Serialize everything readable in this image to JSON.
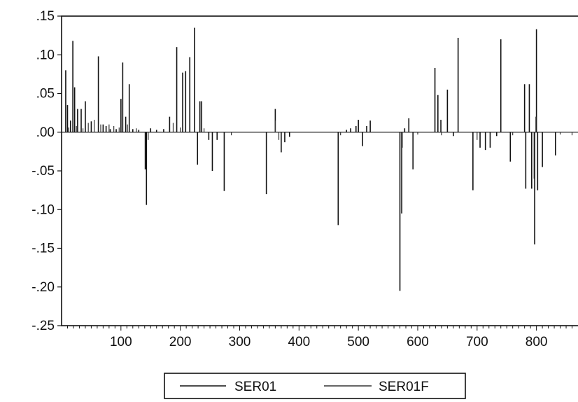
{
  "chart_data": {
    "type": "line",
    "title": "",
    "xlabel": "",
    "ylabel": "",
    "xlim": [
      0,
      870
    ],
    "ylim": [
      -0.25,
      0.15
    ],
    "x_ticks": [
      {
        "value": 100,
        "label": "100"
      },
      {
        "value": 200,
        "label": "200"
      },
      {
        "value": 300,
        "label": "300"
      },
      {
        "value": 400,
        "label": "400"
      },
      {
        "value": 500,
        "label": "500"
      },
      {
        "value": 600,
        "label": "600"
      },
      {
        "value": 700,
        "label": "700"
      },
      {
        "value": 800,
        "label": "800"
      }
    ],
    "y_ticks": [
      {
        "value": 0.15,
        "label": ".15"
      },
      {
        "value": 0.1,
        "label": ".10"
      },
      {
        "value": 0.05,
        "label": ".05"
      },
      {
        "value": 0.0,
        "label": ".00"
      },
      {
        "value": -0.05,
        "label": "-.05"
      },
      {
        "value": -0.1,
        "label": "-.10"
      },
      {
        "value": -0.15,
        "label": "-.15"
      },
      {
        "value": -0.2,
        "label": "-.20"
      },
      {
        "value": -0.25,
        "label": "-.25"
      }
    ],
    "grid": false,
    "legend_position": "bottom-center",
    "colors": {
      "series_1": "#111111",
      "series_2": "#333333",
      "frame": "#111111"
    },
    "series": [
      {
        "name": "SER01",
        "spikes": [
          [
            7,
            0.08
          ],
          [
            10,
            0.035
          ],
          [
            15,
            0.015
          ],
          [
            19,
            0.118
          ],
          [
            22,
            0.058
          ],
          [
            27,
            0.03
          ],
          [
            33,
            0.03
          ],
          [
            40,
            0.04
          ],
          [
            50,
            0.014
          ],
          [
            62,
            0.098
          ],
          [
            70,
            0.01
          ],
          [
            75,
            0.008
          ],
          [
            82,
            0.004
          ],
          [
            92,
            0.004
          ],
          [
            100,
            0.043
          ],
          [
            103,
            0.09
          ],
          [
            108,
            0.02
          ],
          [
            114,
            0.062
          ],
          [
            120,
            0.004
          ],
          [
            130,
            0.003
          ],
          [
            141,
            -0.048
          ],
          [
            143,
            -0.094
          ],
          [
            150,
            0.005
          ],
          [
            160,
            0.003
          ],
          [
            172,
            0.004
          ],
          [
            182,
            0.02
          ],
          [
            194,
            0.11
          ],
          [
            204,
            0.077
          ],
          [
            209,
            0.079
          ],
          [
            216,
            0.097
          ],
          [
            224,
            0.135
          ],
          [
            229,
            -0.042
          ],
          [
            233,
            0.04
          ],
          [
            236,
            0.04
          ],
          [
            248,
            -0.01
          ],
          [
            254,
            -0.05
          ],
          [
            262,
            -0.01
          ],
          [
            274,
            -0.076
          ],
          [
            345,
            -0.08
          ],
          [
            360,
            0.03
          ],
          [
            370,
            -0.026
          ],
          [
            376,
            -0.013
          ],
          [
            384,
            -0.006
          ],
          [
            466,
            -0.12
          ],
          [
            480,
            0.003
          ],
          [
            487,
            0.005
          ],
          [
            496,
            0.008
          ],
          [
            500,
            0.016
          ],
          [
            507,
            -0.018
          ],
          [
            514,
            0.008
          ],
          [
            520,
            0.015
          ],
          [
            570,
            -0.205
          ],
          [
            573,
            -0.105
          ],
          [
            578,
            0.005
          ],
          [
            585,
            0.018
          ],
          [
            592,
            -0.048
          ],
          [
            629,
            0.083
          ],
          [
            634,
            0.048
          ],
          [
            639,
            0.016
          ],
          [
            650,
            0.055
          ],
          [
            660,
            -0.005
          ],
          [
            668,
            0.122
          ],
          [
            693,
            -0.075
          ],
          [
            705,
            -0.02
          ],
          [
            714,
            -0.023
          ],
          [
            722,
            -0.02
          ],
          [
            733,
            -0.005
          ],
          [
            740,
            0.12
          ],
          [
            756,
            -0.038
          ],
          [
            780,
            0.062
          ],
          [
            782,
            -0.073
          ],
          [
            788,
            0.062
          ],
          [
            792,
            -0.073
          ],
          [
            797,
            -0.145
          ],
          [
            800,
            0.133
          ],
          [
            802,
            -0.075
          ],
          [
            810,
            -0.045
          ],
          [
            832,
            -0.03
          ]
        ]
      },
      {
        "name": "SER01F",
        "spikes": [
          [
            12,
            0.006
          ],
          [
            25,
            0.008
          ],
          [
            36,
            0.005
          ],
          [
            45,
            0.012
          ],
          [
            55,
            0.016
          ],
          [
            66,
            0.01
          ],
          [
            80,
            0.01
          ],
          [
            88,
            0.008
          ],
          [
            97,
            0.006
          ],
          [
            111,
            0.01
          ],
          [
            126,
            0.005
          ],
          [
            146,
            -0.01
          ],
          [
            188,
            0.012
          ],
          [
            200,
            0.006
          ],
          [
            240,
            0.005
          ],
          [
            286,
            -0.004
          ],
          [
            360,
            0.015
          ],
          [
            366,
            -0.01
          ],
          [
            470,
            -0.004
          ],
          [
            574,
            -0.02
          ],
          [
            600,
            -0.003
          ],
          [
            640,
            -0.004
          ],
          [
            700,
            -0.01
          ],
          [
            760,
            -0.004
          ],
          [
            796,
            -0.06
          ],
          [
            799,
            0.02
          ],
          [
            840,
            -0.003
          ],
          [
            860,
            -0.004
          ]
        ]
      }
    ]
  }
}
